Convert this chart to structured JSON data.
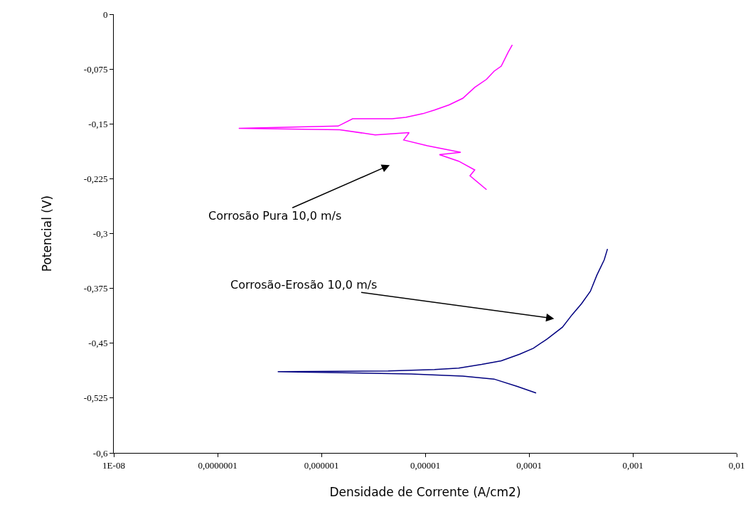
{
  "chart_data": {
    "type": "line",
    "xlabel": "Densidade de Corrente (A/cm2)",
    "ylabel": "Potencial (V)",
    "log": "x",
    "grid": false,
    "marker": "none",
    "line_style": "solid",
    "xlim": [
      1e-08,
      0.01
    ],
    "xticks": [
      {
        "value": 1e-08,
        "label": "1E-08"
      },
      {
        "value": 1e-07,
        "label": "0,0000001"
      },
      {
        "value": 1e-06,
        "label": "0,000001"
      },
      {
        "value": 1e-05,
        "label": "0,00001"
      },
      {
        "value": 0.0001,
        "label": "0,0001"
      },
      {
        "value": 0.001,
        "label": "0,001"
      },
      {
        "value": 0.01,
        "label": "0,01"
      }
    ],
    "ylim": [
      -0.6,
      0
    ],
    "yticks": [
      {
        "value": 0,
        "label": "0"
      },
      {
        "value": -0.075,
        "label": "-0,075"
      },
      {
        "value": -0.15,
        "label": "-0,15"
      },
      {
        "value": -0.225,
        "label": "-0,225"
      },
      {
        "value": -0.3,
        "label": "-0,3"
      },
      {
        "value": -0.375,
        "label": "-0,375"
      },
      {
        "value": -0.45,
        "label": "-0,45"
      },
      {
        "value": -0.525,
        "label": "-0,525"
      },
      {
        "value": -0.6,
        "label": "-0,6"
      }
    ],
    "series": [
      {
        "color": "#ff00ff",
        "x": [
          3.9e-05,
          2.7e-05,
          3e-05,
          2.1e-05,
          1.37e-05,
          2.2e-05,
          1.05e-05,
          6.2e-06,
          7e-06,
          3.3e-06,
          1.5e-06,
          1.6e-07,
          1.45e-06,
          2e-06,
          4.8e-06,
          6.5e-06,
          9.5e-06,
          1.23e-05,
          1.7e-05,
          2.3e-05,
          3e-05,
          3.9e-05,
          4.6e-05,
          5.4e-05,
          6.3e-05,
          6.9e-05
        ],
        "values": [
          -0.24,
          -0.221,
          -0.213,
          -0.201,
          -0.192,
          -0.189,
          -0.18,
          -0.172,
          -0.162,
          -0.165,
          -0.158,
          -0.156,
          -0.153,
          -0.143,
          -0.143,
          -0.141,
          -0.136,
          -0.131,
          -0.124,
          -0.115,
          -0.1,
          -0.089,
          -0.078,
          -0.071,
          -0.052,
          -0.042
        ]
      },
      {
        "color": "#000080",
        "x": [
          0.000117,
          7.7e-05,
          4.6e-05,
          2.3e-05,
          7.3e-06,
          3.8e-07,
          4.4e-06,
          1.23e-05,
          2.1e-05,
          3.5e-05,
          5.4e-05,
          8.1e-05,
          0.00011,
          0.00015,
          0.00021,
          0.00026,
          0.00032,
          0.00039,
          0.00045,
          0.00053,
          0.00057
        ],
        "values": [
          -0.518,
          -0.509,
          -0.499,
          -0.495,
          -0.492,
          -0.489,
          -0.488,
          -0.486,
          -0.484,
          -0.479,
          -0.474,
          -0.465,
          -0.457,
          -0.444,
          -0.428,
          -0.411,
          -0.396,
          -0.379,
          -0.357,
          -0.336,
          -0.321
        ]
      }
    ],
    "annotations": [
      "Corrosão Pura 10,0 m/s",
      "Corrosão-Erosão 10,0 m/s"
    ]
  }
}
